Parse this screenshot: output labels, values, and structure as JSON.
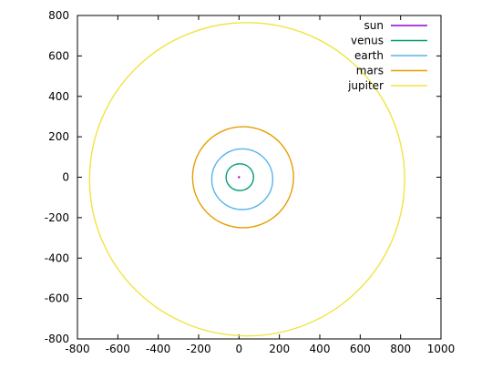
{
  "chart_data": {
    "type": "line",
    "title": "",
    "xlabel": "",
    "ylabel": "",
    "xlim": [
      -800,
      1000
    ],
    "ylim": [
      -800,
      800
    ],
    "xticks": [
      -800,
      -600,
      -400,
      -200,
      0,
      200,
      400,
      600,
      800,
      1000
    ],
    "yticks": [
      -800,
      -600,
      -400,
      -200,
      0,
      200,
      400,
      600,
      800
    ],
    "xtick_labels": [
      "-800",
      "-600",
      "-400",
      "-200",
      "0",
      "200",
      "400",
      "600",
      "800",
      "1000"
    ],
    "ytick_labels": [
      "-800",
      "-600",
      "-400",
      "-200",
      "0",
      "200",
      "400",
      "600",
      "800"
    ],
    "grid": false,
    "legend_position": "top-right",
    "series": [
      {
        "name": "sun",
        "color": "#9400d3",
        "center": [
          0,
          0
        ],
        "radius_x": 0.5,
        "radius_y": 0.5
      },
      {
        "name": "venus",
        "color": "#009e73",
        "center": [
          4,
          0
        ],
        "radius_x": 68,
        "radius_y": 66
      },
      {
        "name": "earth",
        "color": "#56b4e9",
        "center": [
          16,
          -10
        ],
        "radius_x": 151,
        "radius_y": 150
      },
      {
        "name": "mars",
        "color": "#e69f00",
        "center": [
          20,
          0
        ],
        "radius_x": 250,
        "radius_y": 250
      },
      {
        "name": "jupiter",
        "color": "#f0e442",
        "center": [
          40,
          -10
        ],
        "radius_x": 780,
        "radius_y": 775
      }
    ]
  }
}
